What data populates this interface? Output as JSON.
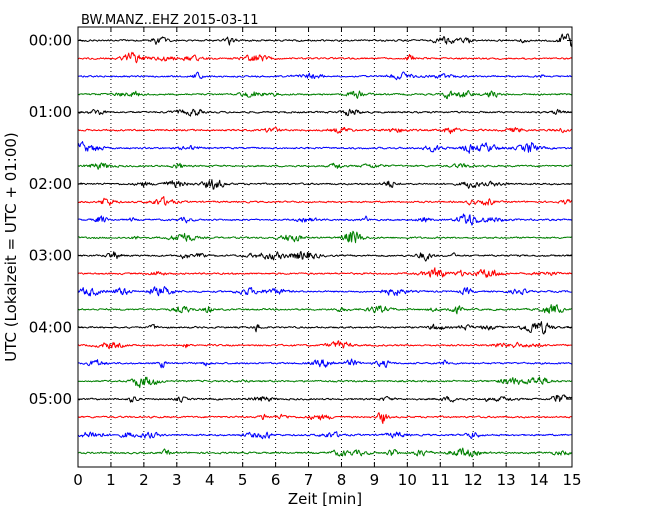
{
  "chart_data": {
    "type": "line",
    "title": "BW.MANZ..EHZ 2015-03-11",
    "xlabel": "Zeit  [min]",
    "ylabel": "UTC (Lokalzeit = UTC + 01:00)",
    "xlim": [
      0,
      15
    ],
    "x_ticks": [
      "0",
      "1",
      "2",
      "3",
      "4",
      "5",
      "6",
      "7",
      "8",
      "9",
      "10",
      "11",
      "12",
      "13",
      "14",
      "15"
    ],
    "y_tick_labels": [
      "00:00",
      "01:00",
      "02:00",
      "03:00",
      "04:00",
      "05:00"
    ],
    "trace_count": 24,
    "trace_minutes": 15,
    "trace_colors": [
      "#000000",
      "#ff0000",
      "#0000ff",
      "#008000"
    ],
    "grid": "vertical-dotted"
  }
}
